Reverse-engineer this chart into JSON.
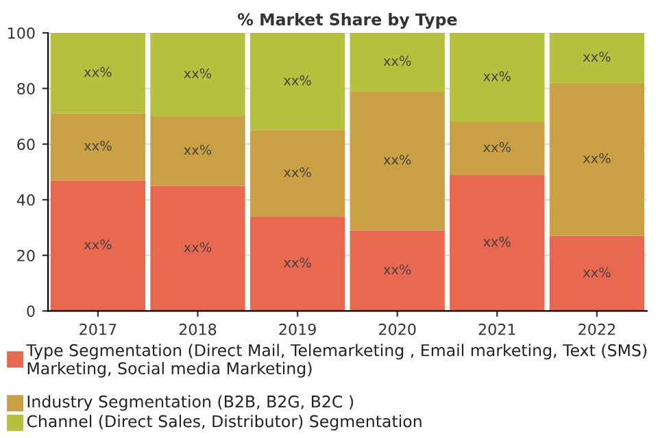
{
  "chart_data": {
    "type": "bar",
    "title": "% Market Share by Type",
    "stacked": true,
    "categories": [
      "2017",
      "2018",
      "2019",
      "2020",
      "2021",
      "2022"
    ],
    "series": [
      {
        "name": "Type Segmentation (Direct Mail, Telemarketing , Email marketing, Text (SMS) Marketing, Social media Marketing)",
        "color": "#e8694f",
        "values": [
          47,
          45,
          34,
          29,
          49,
          27
        ],
        "value_labels": [
          "xx%",
          "xx%",
          "xx%",
          "xx%",
          "xx%",
          "xx%"
        ]
      },
      {
        "name": "Industry Segmentation (B2B, B2G, B2C )",
        "color": "#c9a044",
        "values": [
          24,
          25,
          31,
          50,
          19,
          55
        ],
        "value_labels": [
          "xx%",
          "xx%",
          "xx%",
          "xx%",
          "xx%",
          "xx%"
        ]
      },
      {
        "name": "Channel (Direct Sales, Distributor) Segmentation",
        "color": "#b5c03c",
        "values": [
          29,
          30,
          35,
          21,
          32,
          18
        ],
        "value_labels": [
          "xx%",
          "xx%",
          "xx%",
          "xx%",
          "xx%",
          "xx%"
        ]
      }
    ],
    "ylim": [
      0,
      100
    ],
    "yticks": [
      0,
      20,
      40,
      60,
      80,
      100
    ],
    "grid": "y",
    "legend": "bottom"
  }
}
